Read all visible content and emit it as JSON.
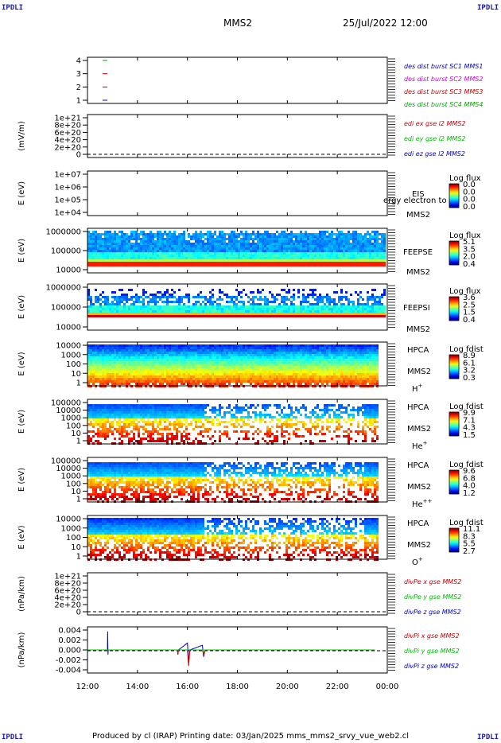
{
  "corners": {
    "tl": "IPDLI",
    "tr": "IPDLI",
    "bl": "IPDLI",
    "br": "IPDLI"
  },
  "header": {
    "title": "MMS2",
    "datetime": "25/Jul/2022 12:00"
  },
  "footer": {
    "text": "Produced by cl (IRAP)   Printing date: 03/Jan/2025   mms_mms2_srvy_vue_web2.cl"
  },
  "x_ticks": [
    "12:00",
    "14:00",
    "16:00",
    "18:00",
    "20:00",
    "22:00",
    "00:00"
  ],
  "colors": {
    "mms1": "#0000cc",
    "mms2": "#cc00cc",
    "mms3": "#cc0000",
    "mms4": "#00aa00",
    "x": "#cc0000",
    "y": "#00bb00",
    "z": "#0000cc"
  },
  "chart_data": [
    {
      "type": "line",
      "panel": "burst",
      "y_ticks": [
        "4",
        "3",
        "2",
        "1"
      ],
      "ylim": [
        0.5,
        4.5
      ],
      "legend": [
        {
          "text": "des dist burst SC1 MMS1",
          "color": "#0000cc"
        },
        {
          "text": "des dist burst SC2 MMS2",
          "color": "#cc00cc"
        },
        {
          "text": "des dist burst SC3 MMS3",
          "color": "#cc0000"
        },
        {
          "text": "des dist burst SC4 MMS4",
          "color": "#00aa00"
        }
      ],
      "series": [
        {
          "values": [
            4
          ],
          "x": [
            12.7
          ],
          "color": "#00aa00"
        },
        {
          "values": [
            3
          ],
          "x": [
            12.7
          ],
          "color": "#cc0000"
        },
        {
          "values": [
            2
          ],
          "x": [
            12.7
          ],
          "color": "#cc0000"
        },
        {
          "values": [
            1
          ],
          "x": [
            12.7
          ],
          "color": "#0000cc"
        }
      ]
    },
    {
      "type": "line",
      "panel": "edi",
      "ylabel": "(mV/m)",
      "y_ticks": [
        "1e+21",
        "8e+20",
        "6e+20",
        "4e+20",
        "2e+20",
        "0"
      ],
      "ylim": [
        0,
        1e+21
      ],
      "legend": [
        {
          "text": "edi ex gse l2 MMS2",
          "color": "#cc0000"
        },
        {
          "text": "edi ey gse l2 MMS2",
          "color": "#00bb00"
        },
        {
          "text": "edi ez gse l2 MMS2",
          "color": "#0000cc"
        }
      ]
    },
    {
      "type": "heatmap",
      "panel": "eis",
      "ylabel": "E (eV)",
      "y_ticks": [
        "1e+07",
        "1e+06",
        "1e+05",
        "1e+04"
      ],
      "ylim": [
        10000,
        10000000
      ],
      "instrument": "EIS",
      "overlay": "ergy electron to",
      "sc": "MMS2",
      "colorbar": {
        "title": "Log flux",
        "ticks": [
          "0.0",
          "0.0",
          "0.0",
          "0.0"
        ]
      }
    },
    {
      "type": "heatmap",
      "panel": "feepse",
      "ylabel": "E (eV)",
      "y_ticks": [
        "1000000",
        "100000",
        "10000"
      ],
      "ylim": [
        10000,
        1000000
      ],
      "instrument": "FEEPSE",
      "sc": "MMS2",
      "colorbar": {
        "title": "Log flux",
        "ticks": [
          "5.1",
          "3.5",
          "2.0",
          "0.4"
        ]
      }
    },
    {
      "type": "heatmap",
      "panel": "feepsi",
      "ylabel": "E (eV)",
      "y_ticks": [
        "1000000",
        "100000",
        "10000"
      ],
      "ylim": [
        10000,
        1000000
      ],
      "instrument": "FEEPSI",
      "sc": "MMS2",
      "colorbar": {
        "title": "Log flux",
        "ticks": [
          "3.6",
          "2.5",
          "1.5",
          "0.4"
        ]
      }
    },
    {
      "type": "heatmap",
      "panel": "hpca_h",
      "ylabel": "E (eV)",
      "y_ticks": [
        "10000",
        "1000",
        "100",
        "10",
        "1"
      ],
      "ylim": [
        1,
        40000
      ],
      "instrument": "HPCA",
      "sc": "MMS2",
      "species": "H",
      "species_sup": "+",
      "colorbar": {
        "title": "Log fdist",
        "ticks": [
          "8.9",
          "6.1",
          "3.2",
          "0.3"
        ]
      }
    },
    {
      "type": "heatmap",
      "panel": "hpca_he",
      "ylabel": "E (eV)",
      "y_ticks": [
        "100000",
        "10000",
        "1000",
        "100",
        "10",
        "1"
      ],
      "ylim": [
        1,
        100000
      ],
      "instrument": "HPCA",
      "sc": "MMS2",
      "species": "He",
      "species_sup": "+",
      "colorbar": {
        "title": "Log fdist",
        "ticks": [
          "9.9",
          "7.1",
          "4.3",
          "1.5"
        ]
      }
    },
    {
      "type": "heatmap",
      "panel": "hpca_hepp",
      "ylabel": "E (eV)",
      "y_ticks": [
        "100000",
        "10000",
        "1000",
        "100",
        "10",
        "1"
      ],
      "ylim": [
        1,
        100000
      ],
      "instrument": "HPCA",
      "sc": "MMS2",
      "species": "He",
      "species_sup": "++",
      "colorbar": {
        "title": "Log fdist",
        "ticks": [
          "9.6",
          "6.8",
          "4.0",
          "1.2"
        ]
      }
    },
    {
      "type": "heatmap",
      "panel": "hpca_o",
      "ylabel": "E (eV)",
      "y_ticks": [
        "10000",
        "1000",
        "100",
        "10",
        "1"
      ],
      "ylim": [
        1,
        40000
      ],
      "instrument": "HPCA",
      "sc": "MMS2",
      "species": "O",
      "species_sup": "+",
      "colorbar": {
        "title": "Log fdist",
        "ticks": [
          "11.1",
          "8.3",
          "5.5",
          "2.7"
        ]
      }
    },
    {
      "type": "line",
      "panel": "divpe",
      "ylabel": "(nPa/km)",
      "y_ticks": [
        "1e+21",
        "8e+20",
        "6e+20",
        "4e+20",
        "2e+20",
        "0"
      ],
      "ylim": [
        0,
        1e+21
      ],
      "legend": [
        {
          "text": "divPe x gse MMS2",
          "color": "#cc0000"
        },
        {
          "text": "divPe y gse MMS2",
          "color": "#00bb00"
        },
        {
          "text": "divPe z gse MMS2",
          "color": "#0000cc"
        }
      ]
    },
    {
      "type": "line",
      "panel": "divpi",
      "ylabel": "(nPa/km)",
      "y_ticks": [
        "0.004",
        "0.002",
        "0.000",
        "-0.002",
        "-0.004"
      ],
      "ylim": [
        -0.005,
        0.005
      ],
      "legend": [
        {
          "text": "divPi x gse MMS2",
          "color": "#cc0000"
        },
        {
          "text": "divPi y gse MMS2",
          "color": "#00bb00"
        },
        {
          "text": "divPi z gse MMS2",
          "color": "#0000cc"
        }
      ],
      "series": [
        {
          "color": "#0000cc",
          "x": [
            12.0,
            12.8,
            12.81,
            12.82,
            12.83,
            15.6,
            15.62,
            15.64,
            16.0,
            16.05,
            16.1,
            16.6,
            16.65,
            16.7,
            17.0,
            20.0,
            23.5
          ],
          "values": [
            0,
            0,
            0.004,
            -0.001,
            0,
            0,
            -0.001,
            0,
            0.0015,
            -0.0025,
            0,
            0.001,
            -0.0015,
            0,
            0,
            0,
            0
          ]
        },
        {
          "color": "#cc0000",
          "x": [
            12.0,
            15.6,
            15.62,
            15.64,
            16.0,
            16.05,
            16.1,
            16.6,
            16.65,
            16.7,
            23.5
          ],
          "values": [
            0,
            0,
            -0.001,
            0,
            0,
            -0.0035,
            0,
            0,
            -0.001,
            0,
            0
          ]
        },
        {
          "color": "#00bb00",
          "x": [
            12.0,
            16.6,
            16.65,
            16.7,
            23.5
          ],
          "values": [
            0,
            0,
            -0.0005,
            0,
            0
          ]
        }
      ]
    }
  ]
}
